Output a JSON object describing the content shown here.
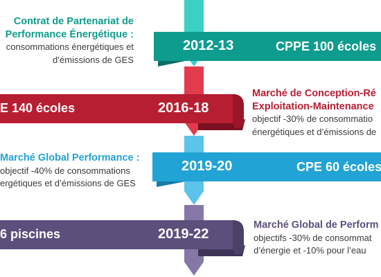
{
  "colors": {
    "teal": "#0e9c8e",
    "red": "#b81e32",
    "blue": "#22a3d6",
    "purple": "#5c4f7c"
  },
  "milestones": [
    {
      "year": "2012-13",
      "program": "CPPE 100 écoles",
      "title_lines": [
        "Contrat de Partenariat de",
        "Performance Énergétique :"
      ],
      "body_lines": [
        "consommations énergétiques et",
        "d’émissions de GES"
      ]
    },
    {
      "year": "2016-18",
      "program": "E 140 écoles",
      "title_lines": [
        "Marché de Conception-Ré",
        "Exploitation-Maintenance"
      ],
      "body_lines": [
        "objectif -30% de consommatio",
        "énergétiques et d’émissions de"
      ]
    },
    {
      "year": "2019-20",
      "program": "CPE 60 écoles",
      "title_lines": [
        "Marché Global Performance :"
      ],
      "body_lines": [
        "objectif -40% de consommations",
        "ergétiques et d’émissions de GES"
      ]
    },
    {
      "year": "2019-22",
      "program": "6 piscines",
      "title_lines": [
        "Marché Global de Perform"
      ],
      "body_lines": [
        "objectifs -30% de consommat",
        "d’énergie et -10% pour l’eau"
      ]
    }
  ]
}
